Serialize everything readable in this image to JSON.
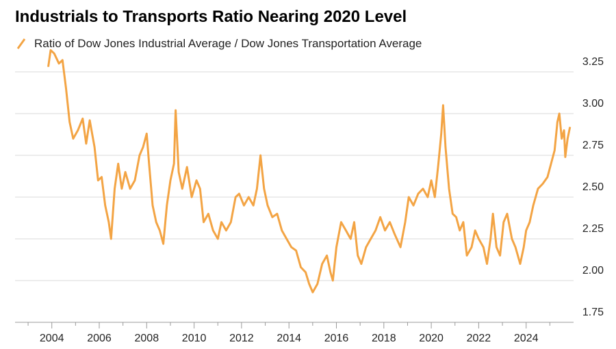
{
  "chart_data": {
    "type": "line",
    "title": "Industrials to Transports Ratio Nearing 2020 Level",
    "series": [
      {
        "name": "Ratio of Dow Jones Industrial Average / Dow Jones Transportation Average",
        "color": "#f3a444",
        "x": [
          2003.85,
          2003.95,
          2004.1,
          2004.3,
          2004.45,
          2004.6,
          2004.75,
          2004.9,
          2005.1,
          2005.3,
          2005.45,
          2005.6,
          2005.8,
          2005.95,
          2006.1,
          2006.25,
          2006.4,
          2006.5,
          2006.65,
          2006.8,
          2006.95,
          2007.1,
          2007.3,
          2007.5,
          2007.7,
          2007.85,
          2008.0,
          2008.1,
          2008.25,
          2008.4,
          2008.55,
          2008.7,
          2008.85,
          2009.0,
          2009.15,
          2009.22,
          2009.35,
          2009.5,
          2009.7,
          2009.9,
          2010.1,
          2010.25,
          2010.4,
          2010.6,
          2010.8,
          2011.0,
          2011.15,
          2011.35,
          2011.55,
          2011.75,
          2011.9,
          2012.1,
          2012.3,
          2012.5,
          2012.65,
          2012.8,
          2012.95,
          2013.1,
          2013.3,
          2013.5,
          2013.7,
          2013.9,
          2014.1,
          2014.3,
          2014.5,
          2014.7,
          2014.85,
          2015.0,
          2015.2,
          2015.4,
          2015.6,
          2015.75,
          2015.85,
          2016.0,
          2016.2,
          2016.4,
          2016.6,
          2016.75,
          2016.9,
          2017.05,
          2017.25,
          2017.45,
          2017.65,
          2017.85,
          2018.05,
          2018.25,
          2018.45,
          2018.7,
          2018.9,
          2019.05,
          2019.25,
          2019.45,
          2019.65,
          2019.85,
          2020.0,
          2020.15,
          2020.3,
          2020.42,
          2020.5,
          2020.6,
          2020.75,
          2020.9,
          2021.05,
          2021.2,
          2021.35,
          2021.5,
          2021.7,
          2021.85,
          2022.0,
          2022.2,
          2022.35,
          2022.5,
          2022.6,
          2022.75,
          2022.9,
          2023.05,
          2023.2,
          2023.4,
          2023.55,
          2023.75,
          2023.9,
          2024.0,
          2024.15,
          2024.3,
          2024.5,
          2024.7,
          2024.9,
          2025.05,
          2025.2,
          2025.32,
          2025.4,
          2025.5,
          2025.6,
          2025.65,
          2025.75,
          2025.85
        ],
        "values": [
          3.28,
          3.38,
          3.36,
          3.3,
          3.32,
          3.15,
          2.95,
          2.85,
          2.9,
          2.97,
          2.82,
          2.96,
          2.8,
          2.6,
          2.62,
          2.45,
          2.35,
          2.25,
          2.55,
          2.7,
          2.55,
          2.65,
          2.55,
          2.6,
          2.75,
          2.8,
          2.88,
          2.7,
          2.45,
          2.35,
          2.3,
          2.22,
          2.45,
          2.6,
          2.7,
          3.02,
          2.65,
          2.55,
          2.68,
          2.5,
          2.6,
          2.55,
          2.35,
          2.4,
          2.3,
          2.25,
          2.35,
          2.3,
          2.35,
          2.5,
          2.52,
          2.45,
          2.5,
          2.45,
          2.55,
          2.75,
          2.55,
          2.45,
          2.38,
          2.4,
          2.3,
          2.25,
          2.2,
          2.18,
          2.08,
          2.05,
          1.98,
          1.93,
          1.98,
          2.1,
          2.15,
          2.05,
          2.0,
          2.2,
          2.35,
          2.3,
          2.25,
          2.35,
          2.15,
          2.1,
          2.2,
          2.25,
          2.3,
          2.38,
          2.3,
          2.35,
          2.28,
          2.2,
          2.35,
          2.5,
          2.45,
          2.52,
          2.55,
          2.5,
          2.6,
          2.5,
          2.7,
          2.88,
          3.05,
          2.8,
          2.55,
          2.4,
          2.38,
          2.3,
          2.35,
          2.15,
          2.2,
          2.3,
          2.25,
          2.2,
          2.1,
          2.25,
          2.4,
          2.2,
          2.15,
          2.35,
          2.4,
          2.25,
          2.2,
          2.1,
          2.2,
          2.3,
          2.35,
          2.45,
          2.55,
          2.58,
          2.62,
          2.7,
          2.78,
          2.95,
          3.0,
          2.85,
          2.9,
          2.74,
          2.85,
          2.92
        ]
      }
    ],
    "xlim": [
      2002.45,
      2026.0
    ],
    "xticks": [
      2004,
      2006,
      2008,
      2010,
      2012,
      2014,
      2016,
      2018,
      2020,
      2022,
      2024
    ],
    "ylim": [
      1.75,
      3.4
    ],
    "yticks": [
      1.75,
      {
        "value": 2,
        "label": "2.00"
      },
      2.25,
      {
        "value": 2.5,
        "label": "2.50"
      },
      2.75,
      {
        "value": 3,
        "label": "3.00"
      },
      3.25
    ],
    "grid": true
  }
}
